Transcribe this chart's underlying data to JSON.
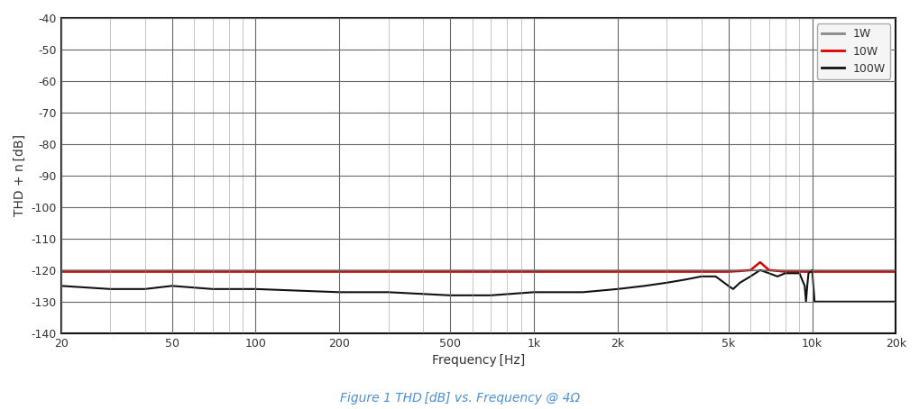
{
  "title": "Figure 1 THD [dB] vs. Frequency @ 4Ω",
  "xlabel": "Frequency [Hz]",
  "ylabel": "THD + n [dB]",
  "xlim": [
    20,
    20000
  ],
  "ylim": [
    -140,
    -40
  ],
  "yticks": [
    -140,
    -130,
    -120,
    -110,
    -100,
    -90,
    -80,
    -70,
    -60,
    -50,
    -40
  ],
  "background_color": "#ffffff",
  "fig_background_color": "#ffffff",
  "grid_color_major": "#666666",
  "grid_color_minor": "#999999",
  "line_1W_color": "#888888",
  "line_10W_color": "#dd0000",
  "line_100W_color": "#111111",
  "spine_color": "#111111",
  "tick_label_color": "#333333",
  "legend_labels": [
    "1W",
    "10W",
    "100W"
  ],
  "freq_1W": [
    20,
    20000
  ],
  "thd_1W": [
    -120,
    -120
  ],
  "freq_10W": [
    20,
    100,
    500,
    1000,
    2000,
    3000,
    4000,
    5000,
    5500,
    6000,
    6500,
    7000,
    8000,
    9000,
    9500,
    10000,
    15000,
    20000
  ],
  "thd_10W": [
    -120.5,
    -120.5,
    -120.5,
    -120.5,
    -120.5,
    -120.5,
    -120.5,
    -120.5,
    -120.3,
    -120,
    -117.5,
    -120,
    -120.5,
    -120.5,
    -120.5,
    -120.5,
    -120.5,
    -120.5
  ],
  "freq_100W": [
    20,
    30,
    40,
    50,
    70,
    100,
    200,
    300,
    500,
    700,
    1000,
    1500,
    2000,
    2500,
    3000,
    3500,
    4000,
    4500,
    5000,
    5200,
    5500,
    6000,
    6500,
    7000,
    7500,
    8000,
    8500,
    9000,
    9400,
    9500,
    9600,
    9700,
    10000,
    10200,
    12000,
    15000,
    20000
  ],
  "thd_100W": [
    -125,
    -126,
    -126,
    -125,
    -126,
    -126,
    -127,
    -127,
    -128,
    -128,
    -127,
    -127,
    -126,
    -125,
    -124,
    -123,
    -122,
    -122,
    -125,
    -126,
    -124,
    -122,
    -120,
    -121,
    -122,
    -121,
    -121,
    -121,
    -125,
    -130,
    -125,
    -121,
    -120,
    -130,
    -130,
    -130,
    -130
  ]
}
